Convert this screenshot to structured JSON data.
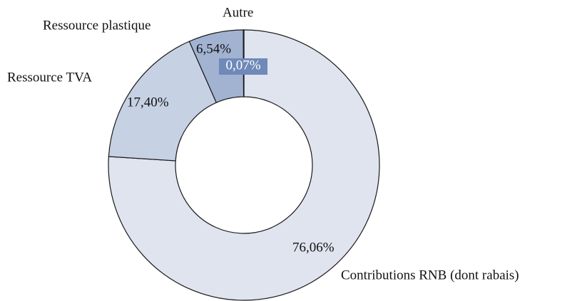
{
  "chart_data": {
    "type": "donut",
    "categories": [
      "Contributions RNB (dont rabais)",
      "Ressource TVA",
      "Ressource plastique",
      "Autre"
    ],
    "values": [
      76.06,
      17.4,
      6.54,
      0.07
    ],
    "value_labels": [
      "76,06%",
      "17,40%",
      "6,54%",
      "0,07%"
    ],
    "colors": [
      "#dfe4ef",
      "#c6d1e4",
      "#a2b3d2",
      "#6f89b8"
    ]
  }
}
